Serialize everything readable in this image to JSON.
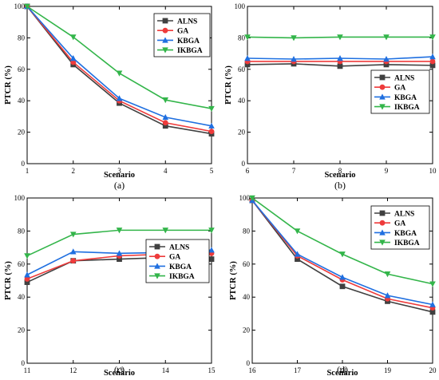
{
  "colors": {
    "ALNS": "#404040",
    "GA": "#ee3b3b",
    "KBGA": "#1f6fe0",
    "IKBGA": "#33b54a"
  },
  "chart_data": [
    {
      "type": "line",
      "panel_label": "(a)",
      "xlabel": "Scenario",
      "ylabel": "PTCR (%)",
      "x": [
        1,
        2,
        3,
        4,
        5
      ],
      "xlim": [
        1,
        5
      ],
      "ylim": [
        0,
        100
      ],
      "xticks": [
        1,
        2,
        3,
        4,
        5
      ],
      "yticks": [
        0,
        20,
        40,
        60,
        80,
        100
      ],
      "legend": "top-right",
      "series": [
        {
          "name": "ALNS",
          "values": [
            100,
            63,
            38.5,
            24,
            19
          ]
        },
        {
          "name": "GA",
          "values": [
            100,
            64.5,
            40,
            26,
            20.5
          ]
        },
        {
          "name": "KBGA",
          "values": [
            100,
            67,
            41.5,
            29.5,
            24
          ]
        },
        {
          "name": "IKBGA",
          "values": [
            100,
            80.5,
            57.5,
            40.5,
            35
          ]
        }
      ]
    },
    {
      "type": "line",
      "panel_label": "(b)",
      "xlabel": "Scenario",
      "ylabel": "PTCR (%)",
      "x": [
        6,
        7,
        8,
        9,
        10
      ],
      "xlim": [
        6,
        10
      ],
      "ylim": [
        0,
        100
      ],
      "xticks": [
        6,
        7,
        8,
        9,
        10
      ],
      "yticks": [
        0,
        20,
        40,
        60,
        80,
        100
      ],
      "legend": "bottom-right",
      "series": [
        {
          "name": "ALNS",
          "values": [
            63,
            63.5,
            62,
            63,
            62.5
          ]
        },
        {
          "name": "GA",
          "values": [
            65,
            65,
            65,
            65,
            65
          ]
        },
        {
          "name": "KBGA",
          "values": [
            67,
            66.5,
            67,
            66.5,
            68
          ]
        },
        {
          "name": "IKBGA",
          "values": [
            80.5,
            80,
            80.5,
            80.5,
            80.5
          ]
        }
      ]
    },
    {
      "type": "line",
      "panel_label": "(c)",
      "xlabel": "Scenario",
      "ylabel": "PTCR (%)",
      "x": [
        11,
        12,
        13,
        14,
        15
      ],
      "xlim": [
        11,
        15
      ],
      "ylim": [
        0,
        100
      ],
      "xticks": [
        11,
        12,
        13,
        14,
        15
      ],
      "yticks": [
        0,
        20,
        40,
        60,
        80,
        100
      ],
      "legend": "bottom-right",
      "series": [
        {
          "name": "ALNS",
          "values": [
            49,
            62,
            63,
            64,
            63
          ]
        },
        {
          "name": "GA",
          "values": [
            51,
            62,
            65,
            66,
            66.5
          ]
        },
        {
          "name": "KBGA",
          "values": [
            53.5,
            67.5,
            66.5,
            67,
            68.5
          ]
        },
        {
          "name": "IKBGA",
          "values": [
            65,
            78,
            80.5,
            80.5,
            80.5
          ]
        }
      ]
    },
    {
      "type": "line",
      "panel_label": "(d)",
      "xlabel": "Scenario",
      "ylabel": "PTCR (%)",
      "x": [
        16,
        17,
        18,
        19,
        20
      ],
      "xlim": [
        16,
        20
      ],
      "ylim": [
        0,
        100
      ],
      "xticks": [
        16,
        17,
        18,
        19,
        20
      ],
      "yticks": [
        0,
        20,
        40,
        60,
        80,
        100
      ],
      "legend": "top-right",
      "series": [
        {
          "name": "ALNS",
          "values": [
            98.5,
            63,
            46.5,
            37.5,
            31
          ]
        },
        {
          "name": "GA",
          "values": [
            98.5,
            65,
            50.5,
            39,
            33.5
          ]
        },
        {
          "name": "KBGA",
          "values": [
            98.5,
            66,
            52,
            41,
            35.5
          ]
        },
        {
          "name": "IKBGA",
          "values": [
            100,
            80,
            66,
            54,
            48
          ]
        }
      ]
    }
  ]
}
